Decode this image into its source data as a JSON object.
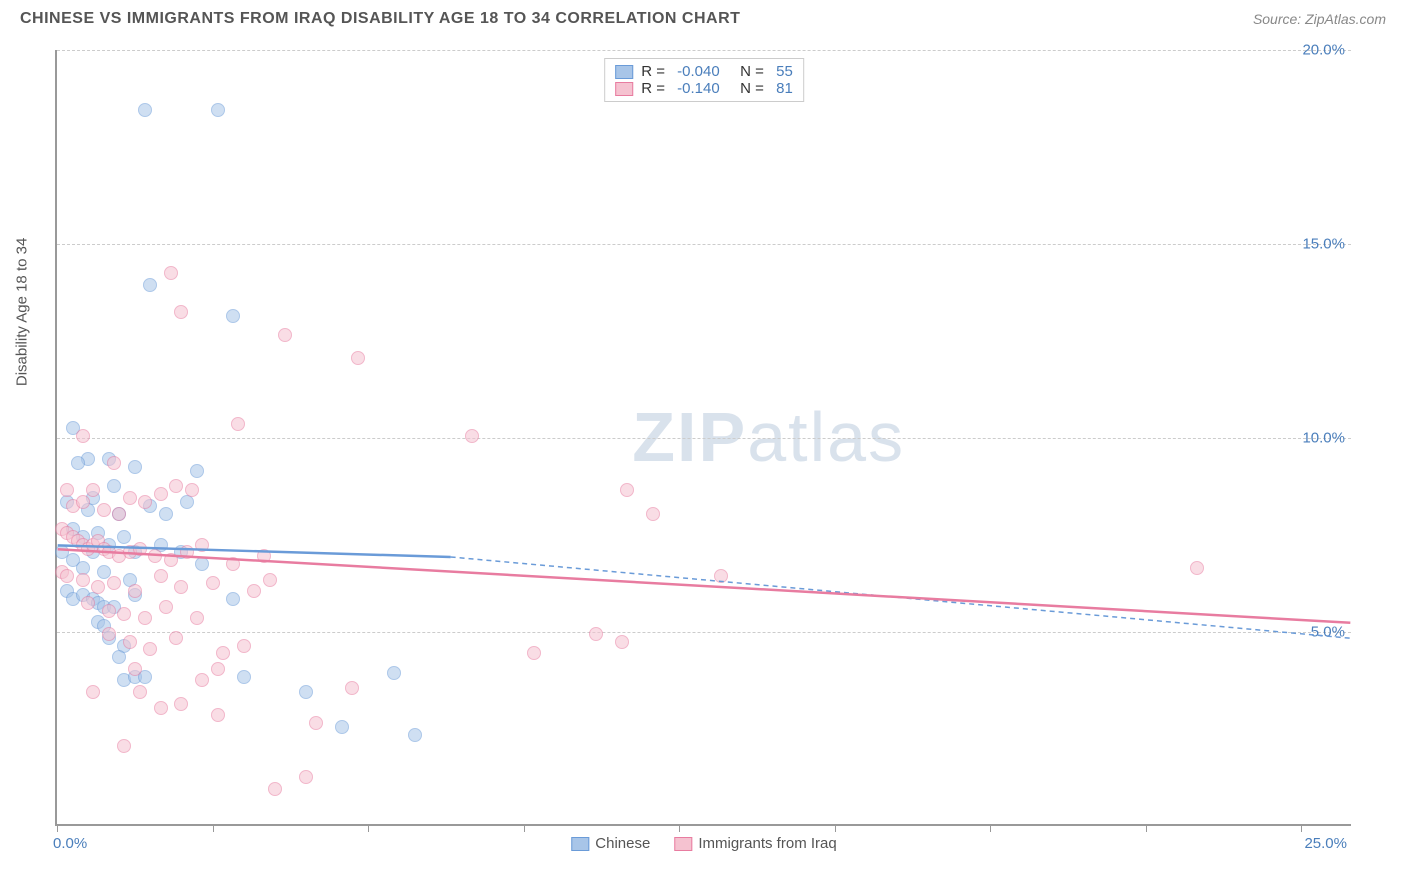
{
  "header": {
    "title": "CHINESE VS IMMIGRANTS FROM IRAQ DISABILITY AGE 18 TO 34 CORRELATION CHART",
    "source": "Source: ZipAtlas.com"
  },
  "chart": {
    "type": "scatter",
    "y_axis_title": "Disability Age 18 to 34",
    "watermark": "ZIPatlas",
    "xlim": [
      0,
      25
    ],
    "ylim": [
      0,
      20
    ],
    "x_ticks": [
      0,
      3,
      6,
      9,
      12,
      15,
      18,
      21,
      24
    ],
    "x_labels": [
      {
        "value": 0,
        "text": "0.0%"
      },
      {
        "value": 25,
        "text": "25.0%"
      }
    ],
    "y_gridlines": [
      5,
      10,
      15,
      20
    ],
    "y_labels": [
      {
        "value": 5,
        "text": "5.0%"
      },
      {
        "value": 10,
        "text": "10.0%"
      },
      {
        "value": 15,
        "text": "15.0%"
      },
      {
        "value": 20,
        "text": "20.0%"
      }
    ],
    "grid_color": "#cccccc",
    "background_color": "#ffffff",
    "point_radius": 7,
    "point_opacity": 0.55,
    "series": [
      {
        "id": "chinese",
        "label": "Chinese",
        "color_fill": "#a8c5e8",
        "color_stroke": "#6a9bd8",
        "r": "-0.040",
        "n": "55",
        "regression": {
          "x1": 0,
          "y1": 7.2,
          "x2": 7.6,
          "y2": 6.9,
          "extrap_x2": 25,
          "extrap_y2": 4.8
        },
        "points": [
          [
            1.7,
            18.4
          ],
          [
            3.1,
            18.4
          ],
          [
            1.8,
            13.9
          ],
          [
            3.4,
            13.1
          ],
          [
            0.3,
            10.2
          ],
          [
            0.6,
            9.4
          ],
          [
            0.4,
            9.3
          ],
          [
            1.0,
            9.4
          ],
          [
            1.5,
            9.2
          ],
          [
            1.1,
            8.7
          ],
          [
            2.7,
            9.1
          ],
          [
            0.2,
            8.3
          ],
          [
            0.6,
            8.1
          ],
          [
            0.7,
            8.4
          ],
          [
            1.2,
            8.0
          ],
          [
            1.8,
            8.2
          ],
          [
            2.1,
            8.0
          ],
          [
            2.5,
            8.3
          ],
          [
            0.3,
            7.6
          ],
          [
            0.5,
            7.4
          ],
          [
            0.8,
            7.5
          ],
          [
            1.0,
            7.2
          ],
          [
            1.3,
            7.4
          ],
          [
            1.5,
            7.0
          ],
          [
            2.0,
            7.2
          ],
          [
            2.4,
            7.0
          ],
          [
            0.1,
            7.0
          ],
          [
            0.3,
            6.8
          ],
          [
            0.5,
            6.6
          ],
          [
            0.7,
            7.0
          ],
          [
            0.9,
            6.5
          ],
          [
            1.4,
            6.3
          ],
          [
            2.8,
            6.7
          ],
          [
            0.2,
            6.0
          ],
          [
            0.3,
            5.8
          ],
          [
            0.5,
            5.9
          ],
          [
            0.7,
            5.8
          ],
          [
            0.8,
            5.7
          ],
          [
            0.9,
            5.6
          ],
          [
            1.1,
            5.6
          ],
          [
            1.5,
            5.9
          ],
          [
            3.4,
            5.8
          ],
          [
            0.8,
            5.2
          ],
          [
            0.9,
            5.1
          ],
          [
            1.0,
            4.8
          ],
          [
            1.3,
            4.6
          ],
          [
            1.2,
            4.3
          ],
          [
            1.3,
            3.7
          ],
          [
            1.5,
            3.8
          ],
          [
            1.7,
            3.8
          ],
          [
            3.6,
            3.8
          ],
          [
            6.5,
            3.9
          ],
          [
            4.8,
            3.4
          ],
          [
            5.5,
            2.5
          ],
          [
            6.9,
            2.3
          ]
        ]
      },
      {
        "id": "iraq",
        "label": "Immigrants from Iraq",
        "color_fill": "#f5c2d0",
        "color_stroke": "#e87ca0",
        "r": "-0.140",
        "n": "81",
        "regression": {
          "x1": 0,
          "y1": 7.1,
          "x2": 25,
          "y2": 5.2
        },
        "points": [
          [
            2.2,
            14.2
          ],
          [
            4.4,
            12.6
          ],
          [
            5.8,
            12.0
          ],
          [
            0.5,
            10.0
          ],
          [
            8.0,
            10.0
          ],
          [
            0.2,
            8.6
          ],
          [
            0.3,
            8.2
          ],
          [
            0.5,
            8.3
          ],
          [
            0.7,
            8.6
          ],
          [
            0.9,
            8.1
          ],
          [
            1.2,
            8.0
          ],
          [
            1.4,
            8.4
          ],
          [
            1.7,
            8.3
          ],
          [
            2.0,
            8.5
          ],
          [
            2.3,
            8.7
          ],
          [
            2.6,
            8.6
          ],
          [
            11.0,
            8.6
          ],
          [
            11.5,
            8.0
          ],
          [
            0.1,
            7.6
          ],
          [
            0.2,
            7.5
          ],
          [
            0.3,
            7.4
          ],
          [
            0.4,
            7.3
          ],
          [
            0.5,
            7.2
          ],
          [
            0.6,
            7.1
          ],
          [
            0.7,
            7.2
          ],
          [
            0.8,
            7.3
          ],
          [
            0.9,
            7.1
          ],
          [
            1.0,
            7.0
          ],
          [
            1.2,
            6.9
          ],
          [
            1.4,
            7.0
          ],
          [
            1.6,
            7.1
          ],
          [
            1.9,
            6.9
          ],
          [
            2.2,
            6.8
          ],
          [
            2.5,
            7.0
          ],
          [
            2.8,
            7.2
          ],
          [
            3.4,
            6.7
          ],
          [
            4.0,
            6.9
          ],
          [
            0.1,
            6.5
          ],
          [
            0.2,
            6.4
          ],
          [
            0.5,
            6.3
          ],
          [
            0.8,
            6.1
          ],
          [
            1.1,
            6.2
          ],
          [
            1.5,
            6.0
          ],
          [
            2.0,
            6.4
          ],
          [
            2.4,
            6.1
          ],
          [
            3.0,
            6.2
          ],
          [
            3.8,
            6.0
          ],
          [
            4.1,
            6.3
          ],
          [
            12.8,
            6.4
          ],
          [
            22.0,
            6.6
          ],
          [
            0.6,
            5.7
          ],
          [
            1.0,
            5.5
          ],
          [
            1.3,
            5.4
          ],
          [
            1.7,
            5.3
          ],
          [
            2.1,
            5.6
          ],
          [
            2.7,
            5.3
          ],
          [
            1.0,
            4.9
          ],
          [
            1.4,
            4.7
          ],
          [
            1.8,
            4.5
          ],
          [
            2.3,
            4.8
          ],
          [
            3.2,
            4.4
          ],
          [
            3.6,
            4.6
          ],
          [
            10.4,
            4.9
          ],
          [
            10.9,
            4.7
          ],
          [
            1.5,
            4.0
          ],
          [
            2.8,
            3.7
          ],
          [
            3.1,
            4.0
          ],
          [
            5.7,
            3.5
          ],
          [
            9.2,
            4.4
          ],
          [
            0.7,
            3.4
          ],
          [
            1.6,
            3.4
          ],
          [
            2.0,
            3.0
          ],
          [
            2.4,
            3.1
          ],
          [
            3.1,
            2.8
          ],
          [
            5.0,
            2.6
          ],
          [
            1.3,
            2.0
          ],
          [
            4.8,
            1.2
          ],
          [
            4.2,
            0.9
          ],
          [
            2.4,
            13.2
          ],
          [
            3.5,
            10.3
          ],
          [
            1.1,
            9.3
          ]
        ]
      }
    ]
  }
}
